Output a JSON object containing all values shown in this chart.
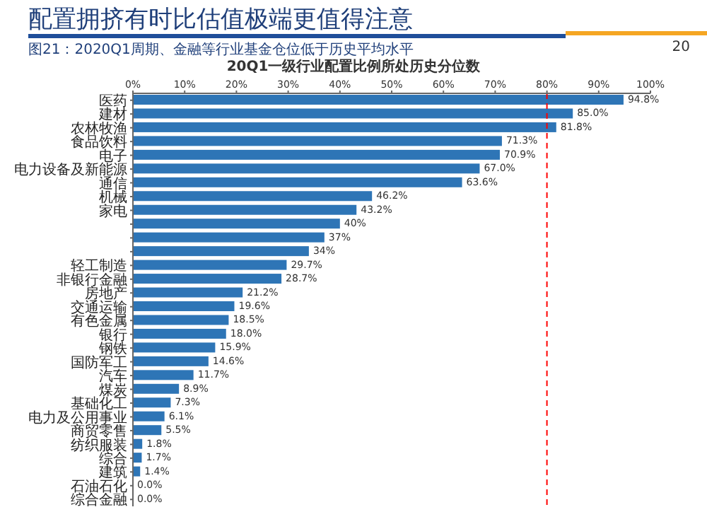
{
  "chart_data": {
    "type": "bar",
    "orientation": "horizontal",
    "title": "配置拥挤有时比估值极端更值得注意",
    "subtitle": "图21：2020Q1周期、金融等行业基金仓位低于历史平均水平",
    "xlabel": "20Q1一级行业配置比例所处历史分位数",
    "annotations": [
      "20"
    ],
    "categories": [
      "医药",
      "建材",
      "农林牧渔",
      "食品饮料",
      "电子",
      "电力设备及新能源",
      "通信",
      "机械",
      "家电",
      null,
      null,
      null,
      "轻工制造",
      "非银行金融",
      "房地产",
      "交通运输",
      "有色金属",
      "银行",
      "钢铁",
      "国防军工",
      "汽车",
      "煤炭",
      "基础化工",
      "电力及公用事业",
      "商贸零售",
      "纺织服装",
      "综合",
      "建筑",
      "石油石化",
      "综合金融"
    ],
    "values": [
      94.8,
      85.0,
      81.8,
      71.3,
      70.9,
      67.0,
      63.6,
      46.2,
      43.2,
      40,
      37,
      34,
      29.7,
      28.7,
      21.2,
      19.6,
      18.5,
      18.0,
      15.9,
      14.6,
      11.7,
      8.9,
      7.3,
      6.1,
      5.5,
      1.8,
      1.7,
      1.4,
      0,
      0
    ],
    "value_labels": [
      "94.8%",
      "85.0%",
      "81.8%",
      "71.3%",
      "70.9%",
      "67.0%",
      "63.6%",
      "46.2%",
      "43.2%",
      "40%",
      "37%",
      "34%",
      "29.7%",
      "28.7%",
      "21.2%",
      "19.6%",
      "18.5%",
      "18.0%",
      "15.9%",
      "14.6%",
      "11.7%",
      "8.9%",
      "7.3%",
      "6.1%",
      "5.5%",
      "1.8%",
      "1.7%",
      "1.4%",
      "0.0%",
      "0.0%"
    ],
    "color": "#2e75b6",
    "xlim": [
      0,
      100
    ],
    "xticks": [
      {
        "value": 0,
        "label": "0%"
      },
      {
        "value": 10,
        "label": "10%"
      },
      {
        "value": 20,
        "label": "20%"
      },
      {
        "value": 30,
        "label": "30%"
      },
      {
        "value": 40,
        "label": "40%"
      },
      {
        "value": 50,
        "label": "50%"
      },
      {
        "value": 60,
        "label": "60%"
      },
      {
        "value": 70,
        "label": "70%"
      },
      {
        "value": 80,
        "label": "80%"
      },
      {
        "value": 90,
        "label": "90%"
      },
      {
        "value": 100,
        "label": "100%"
      }
    ],
    "ref_lines": [
      {
        "axis": "x",
        "value": 80,
        "color": "#ff0000",
        "line_style": "dashed"
      }
    ],
    "grid": false
  }
}
